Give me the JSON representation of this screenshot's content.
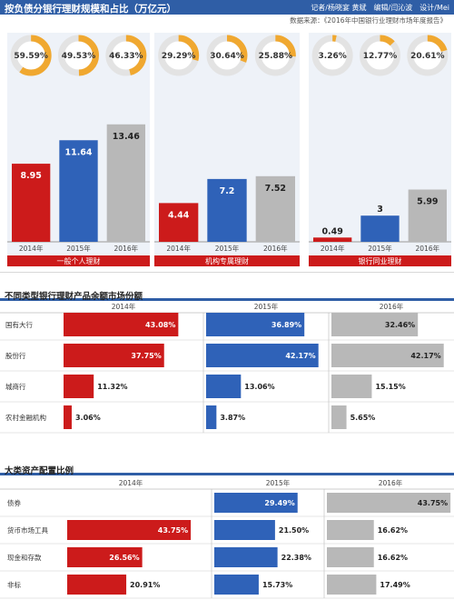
{
  "colors": {
    "y2014": "#cc1b1b",
    "y2015": "#2f62b8",
    "y2016": "#b8b8b8",
    "ring": "#f0a830",
    "ringbg": "#e3e3e3",
    "blue": "#2f5ea6"
  },
  "header": {
    "title": "按负债分银行理财规模和占比（万亿元）",
    "credit": "记者/杨晓宴 黄斌　编辑/闫沁波　设计/Mei"
  },
  "source": "数据来源：《2016年中国银行业理财市场年度报告》",
  "chart_data": [
    {
      "type": "bar",
      "title": "按负债分银行理财规模和占比（万亿元）",
      "groups": [
        {
          "name": "一般个人理财",
          "categories": [
            "2014年",
            "2015年",
            "2016年"
          ],
          "values": [
            8.95,
            11.64,
            13.46
          ],
          "value_labels": [
            "8.95",
            "11.64",
            "13.46"
          ],
          "shares": [
            "59.59%",
            "49.53%",
            "46.33%"
          ],
          "share_values": [
            59.59,
            49.53,
            46.33
          ]
        },
        {
          "name": "机构专属理财",
          "categories": [
            "2014年",
            "2015年",
            "2016年"
          ],
          "values": [
            4.44,
            7.2,
            7.52
          ],
          "value_labels": [
            "4.44",
            "7.2",
            "7.52"
          ],
          "shares": [
            "29.29%",
            "30.64%",
            "25.88%"
          ],
          "share_values": [
            29.29,
            30.64,
            25.88
          ]
        },
        {
          "name": "银行同业理财",
          "categories": [
            "2014年",
            "2015年",
            "2016年"
          ],
          "values": [
            0.49,
            3,
            5.99
          ],
          "value_labels": [
            "0.49",
            "3",
            "5.99"
          ],
          "shares": [
            "3.26%",
            "12.77%",
            "20.61%"
          ],
          "share_values": [
            3.26,
            12.77,
            20.61
          ]
        }
      ]
    },
    {
      "type": "bar",
      "title": "不同类型银行理财产品余额市场份额",
      "years": [
        "2014年",
        "2015年",
        "2016年"
      ],
      "rows": [
        {
          "label": "国有大行",
          "values": [
            43.08,
            36.89,
            32.46
          ],
          "labels": [
            "43.08%",
            "36.89%",
            "32.46%"
          ]
        },
        {
          "label": "股份行",
          "values": [
            37.75,
            42.17,
            42.17
          ],
          "labels": [
            "37.75%",
            "42.17%",
            "42.17%"
          ]
        },
        {
          "label": "城商行",
          "values": [
            11.32,
            13.06,
            15.15
          ],
          "labels": [
            "11.32%",
            "13.06%",
            "15.15%"
          ]
        },
        {
          "label": "农村金融机构",
          "values": [
            3.06,
            3.87,
            5.65
          ],
          "labels": [
            "3.06%",
            "3.87%",
            "5.65%"
          ]
        }
      ]
    },
    {
      "type": "bar",
      "title": "大类资产配置比例",
      "years": [
        "2014年",
        "2015年",
        "2016年"
      ],
      "rows": [
        {
          "label": "债券",
          "values": [
            null,
            29.49,
            43.75
          ],
          "labels": [
            "",
            "29.49%",
            "43.75%"
          ]
        },
        {
          "label": "货币市场工具",
          "values": [
            43.75,
            21.5,
            16.62
          ],
          "labels": [
            "43.75%",
            "21.50%",
            "16.62%"
          ]
        },
        {
          "label": "现金和存款",
          "values": [
            26.56,
            22.38,
            16.62
          ],
          "labels": [
            "26.56%",
            "22.38%",
            "16.62%"
          ]
        },
        {
          "label": "非标",
          "values": [
            20.91,
            15.73,
            17.49
          ],
          "labels": [
            "20.91%",
            "15.73%",
            "17.49%"
          ]
        }
      ]
    }
  ]
}
